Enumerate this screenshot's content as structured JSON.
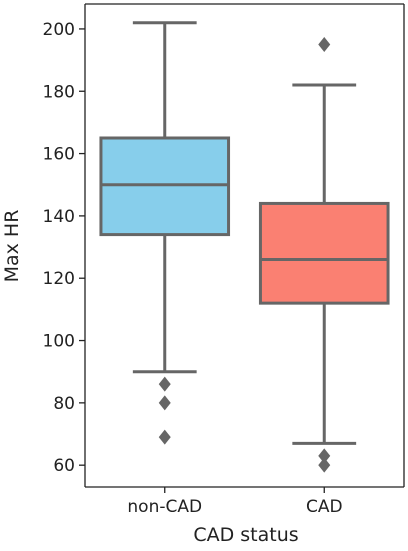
{
  "chart_data": {
    "type": "box",
    "title": "",
    "xlabel": "CAD status",
    "ylabel": "Max HR",
    "ylim": [
      53,
      208
    ],
    "yticks": [
      60,
      80,
      100,
      120,
      140,
      160,
      180,
      200
    ],
    "grid": false,
    "categories": [
      "non-CAD",
      "CAD"
    ],
    "boxes": [
      {
        "category": "non-CAD",
        "color": "#87CEEB",
        "whisker_low": 90,
        "q1": 134,
        "median": 150,
        "q3": 165,
        "whisker_high": 202,
        "outliers": [
          86,
          80,
          69
        ]
      },
      {
        "category": "CAD",
        "color": "#FA8072",
        "whisker_low": 67,
        "q1": 112,
        "median": 126,
        "q3": 144,
        "whisker_high": 182,
        "outliers": [
          195,
          63,
          60
        ]
      }
    ],
    "line_color": "#666666"
  }
}
